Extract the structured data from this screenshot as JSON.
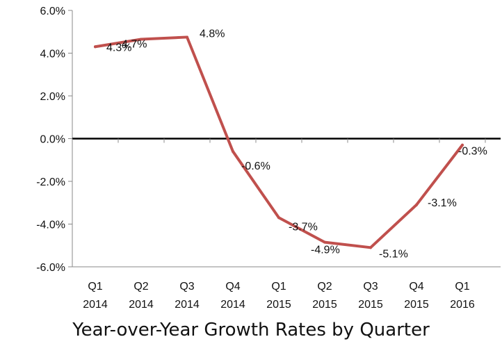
{
  "chart_data": {
    "type": "line",
    "title": "Year-over-Year Growth Rates by Quarter",
    "categories": [
      [
        "Q1",
        "2014"
      ],
      [
        "Q2",
        "2014"
      ],
      [
        "Q3",
        "2014"
      ],
      [
        "Q4",
        "2014"
      ],
      [
        "Q1",
        "2015"
      ],
      [
        "Q2",
        "2015"
      ],
      [
        "Q3",
        "2015"
      ],
      [
        "Q4",
        "2015"
      ],
      [
        "Q1",
        "2016"
      ]
    ],
    "series": [
      {
        "values": [
          4.3,
          4.65,
          4.75,
          -0.6,
          -3.7,
          -4.85,
          -5.1,
          -3.1,
          -0.3
        ],
        "labels": [
          "4.3%",
          "4.7%",
          "4.8%",
          "-0.6%",
          "-3.7%",
          "-4.9%",
          "-5.1%",
          "-3.1%",
          "-0.3%"
        ],
        "color": "#c0504d"
      }
    ],
    "ylim": [
      -6,
      6
    ],
    "yticks": [
      "6.0%",
      "4.0%",
      "2.0%",
      "0.0%",
      "-2.0%",
      "-4.0%",
      "-6.0%"
    ],
    "ytick_values": [
      6,
      4,
      2,
      0,
      -2,
      -4,
      -6
    ],
    "zero_line_color": "#000000",
    "axis_color": "#888888",
    "grid": false
  }
}
